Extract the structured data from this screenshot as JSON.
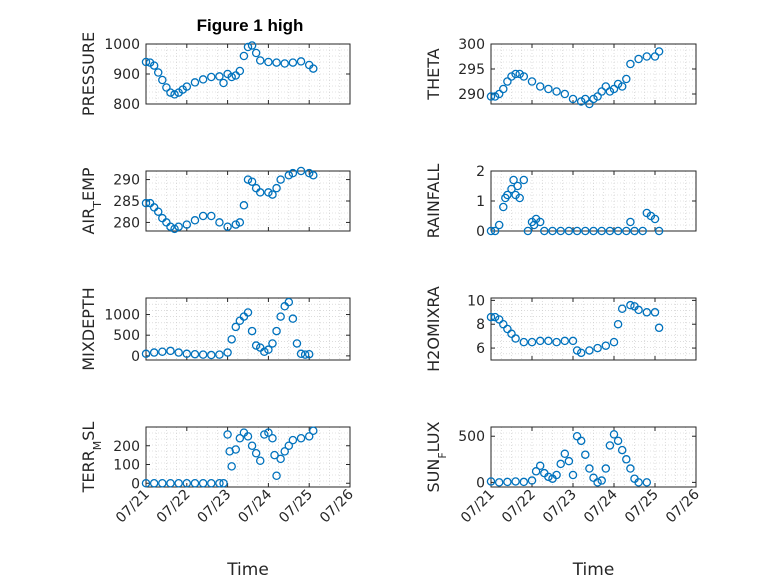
{
  "figure": {
    "title": "Figure 1 high"
  },
  "chart_data": [
    {
      "type": "scatter",
      "title": "Figure 1 high",
      "ylabel": "PRESSURE",
      "ylim": [
        800,
        1000
      ],
      "yticks": [
        800,
        900,
        1000
      ],
      "xlim": [
        0,
        5
      ],
      "xticks": [
        "07/21",
        "07/22",
        "07/23",
        "07/24",
        "07/25",
        "07/26"
      ],
      "xlabel": "",
      "grid": true,
      "points": [
        [
          0,
          940
        ],
        [
          0.1,
          938
        ],
        [
          0.2,
          928
        ],
        [
          0.3,
          905
        ],
        [
          0.4,
          880
        ],
        [
          0.5,
          855
        ],
        [
          0.6,
          838
        ],
        [
          0.7,
          832
        ],
        [
          0.8,
          838
        ],
        [
          0.9,
          848
        ],
        [
          1.0,
          858
        ],
        [
          1.2,
          872
        ],
        [
          1.4,
          882
        ],
        [
          1.6,
          890
        ],
        [
          1.8,
          892
        ],
        [
          1.9,
          870
        ],
        [
          2.0,
          900
        ],
        [
          2.1,
          890
        ],
        [
          2.2,
          895
        ],
        [
          2.3,
          910
        ],
        [
          2.4,
          960
        ],
        [
          2.5,
          990
        ],
        [
          2.6,
          995
        ],
        [
          2.7,
          970
        ],
        [
          2.8,
          945
        ],
        [
          3.0,
          940
        ],
        [
          3.2,
          938
        ],
        [
          3.4,
          935
        ],
        [
          3.6,
          938
        ],
        [
          3.8,
          942
        ],
        [
          4.0,
          930
        ],
        [
          4.1,
          918
        ]
      ]
    },
    {
      "type": "scatter",
      "ylabel": "THETA",
      "ylim": [
        288,
        300
      ],
      "yticks": [
        290,
        295,
        300
      ],
      "xlim": [
        0,
        5
      ],
      "xticks": [
        "07/21",
        "07/22",
        "07/23",
        "07/24",
        "07/25",
        "07/26"
      ],
      "xlabel": "",
      "grid": true,
      "points": [
        [
          0,
          289.5
        ],
        [
          0.1,
          289.5
        ],
        [
          0.2,
          290
        ],
        [
          0.3,
          291
        ],
        [
          0.4,
          292.5
        ],
        [
          0.5,
          293.5
        ],
        [
          0.6,
          294
        ],
        [
          0.7,
          294
        ],
        [
          0.8,
          293.5
        ],
        [
          1.0,
          292.5
        ],
        [
          1.2,
          291.5
        ],
        [
          1.4,
          291
        ],
        [
          1.6,
          290.5
        ],
        [
          1.8,
          290
        ],
        [
          2.0,
          289
        ],
        [
          2.2,
          288.5
        ],
        [
          2.3,
          289
        ],
        [
          2.4,
          288
        ],
        [
          2.5,
          289
        ],
        [
          2.6,
          289.5
        ],
        [
          2.7,
          290.5
        ],
        [
          2.8,
          291.5
        ],
        [
          2.9,
          290.5
        ],
        [
          3.0,
          291
        ],
        [
          3.1,
          292
        ],
        [
          3.2,
          291.5
        ],
        [
          3.3,
          293
        ],
        [
          3.4,
          296
        ],
        [
          3.6,
          297
        ],
        [
          3.8,
          297.5
        ],
        [
          4.0,
          297.5
        ],
        [
          4.1,
          298.5
        ]
      ]
    },
    {
      "type": "scatter",
      "ylabel": "AIR_TEMP",
      "ylim": [
        278,
        292
      ],
      "yticks": [
        280,
        285,
        290
      ],
      "xlim": [
        0,
        5
      ],
      "xticks": [
        "07/21",
        "07/22",
        "07/23",
        "07/24",
        "07/25",
        "07/26"
      ],
      "xlabel": "",
      "grid": true,
      "points": [
        [
          0,
          284.5
        ],
        [
          0.1,
          284.5
        ],
        [
          0.2,
          283.5
        ],
        [
          0.3,
          282.5
        ],
        [
          0.4,
          281
        ],
        [
          0.5,
          280
        ],
        [
          0.6,
          279
        ],
        [
          0.7,
          278.5
        ],
        [
          0.8,
          279
        ],
        [
          1.0,
          279.5
        ],
        [
          1.2,
          280.5
        ],
        [
          1.4,
          281.5
        ],
        [
          1.6,
          281.5
        ],
        [
          1.8,
          280
        ],
        [
          2.0,
          279
        ],
        [
          2.2,
          279.5
        ],
        [
          2.3,
          280
        ],
        [
          2.4,
          284
        ],
        [
          2.5,
          290
        ],
        [
          2.6,
          289.5
        ],
        [
          2.7,
          288
        ],
        [
          2.8,
          287
        ],
        [
          3.0,
          287
        ],
        [
          3.1,
          286.5
        ],
        [
          3.2,
          288
        ],
        [
          3.3,
          290
        ],
        [
          3.5,
          291
        ],
        [
          3.6,
          291.5
        ],
        [
          3.8,
          292
        ],
        [
          4.0,
          291.5
        ],
        [
          4.1,
          291
        ]
      ]
    },
    {
      "type": "scatter",
      "ylabel": "RAINFALL",
      "ylim": [
        0,
        2
      ],
      "yticks": [
        0,
        1,
        2
      ],
      "xlim": [
        0,
        5
      ],
      "xticks": [
        "07/21",
        "07/22",
        "07/23",
        "07/24",
        "07/25",
        "07/26"
      ],
      "xlabel": "",
      "grid": true,
      "points": [
        [
          0,
          0
        ],
        [
          0.1,
          0
        ],
        [
          0.2,
          0.2
        ],
        [
          0.3,
          0.8
        ],
        [
          0.35,
          1.1
        ],
        [
          0.4,
          1.2
        ],
        [
          0.5,
          1.4
        ],
        [
          0.55,
          1.7
        ],
        [
          0.6,
          1.2
        ],
        [
          0.65,
          1.5
        ],
        [
          0.7,
          1.1
        ],
        [
          0.8,
          1.7
        ],
        [
          0.9,
          0
        ],
        [
          1.0,
          0.3
        ],
        [
          1.05,
          0.2
        ],
        [
          1.1,
          0.4
        ],
        [
          1.2,
          0.3
        ],
        [
          1.3,
          0
        ],
        [
          1.5,
          0
        ],
        [
          1.7,
          0
        ],
        [
          1.9,
          0
        ],
        [
          2.1,
          0
        ],
        [
          2.3,
          0
        ],
        [
          2.5,
          0
        ],
        [
          2.7,
          0
        ],
        [
          2.9,
          0
        ],
        [
          3.1,
          0
        ],
        [
          3.3,
          0
        ],
        [
          3.4,
          0.3
        ],
        [
          3.5,
          0
        ],
        [
          3.7,
          0
        ],
        [
          3.8,
          0.6
        ],
        [
          3.9,
          0.5
        ],
        [
          4.0,
          0.4
        ],
        [
          4.1,
          0
        ]
      ]
    },
    {
      "type": "scatter",
      "ylabel": "MIXDEPTH",
      "ylim": [
        -100,
        1400
      ],
      "yticks": [
        0,
        500,
        1000
      ],
      "xlim": [
        0,
        5
      ],
      "xticks": [
        "07/21",
        "07/22",
        "07/23",
        "07/24",
        "07/25",
        "07/26"
      ],
      "xlabel": "",
      "grid": true,
      "points": [
        [
          0,
          50
        ],
        [
          0.2,
          80
        ],
        [
          0.4,
          100
        ],
        [
          0.6,
          120
        ],
        [
          0.8,
          80
        ],
        [
          1.0,
          50
        ],
        [
          1.2,
          40
        ],
        [
          1.4,
          30
        ],
        [
          1.6,
          20
        ],
        [
          1.8,
          30
        ],
        [
          2.0,
          80
        ],
        [
          2.1,
          400
        ],
        [
          2.2,
          700
        ],
        [
          2.3,
          850
        ],
        [
          2.4,
          950
        ],
        [
          2.5,
          1050
        ],
        [
          2.6,
          600
        ],
        [
          2.7,
          250
        ],
        [
          2.8,
          200
        ],
        [
          2.9,
          100
        ],
        [
          3.0,
          150
        ],
        [
          3.1,
          300
        ],
        [
          3.2,
          600
        ],
        [
          3.3,
          950
        ],
        [
          3.4,
          1200
        ],
        [
          3.5,
          1300
        ],
        [
          3.6,
          900
        ],
        [
          3.7,
          300
        ],
        [
          3.8,
          50
        ],
        [
          3.9,
          30
        ],
        [
          4.0,
          40
        ]
      ]
    },
    {
      "type": "scatter",
      "ylabel": "H2OMIXRA",
      "ylim": [
        5,
        10.2
      ],
      "yticks": [
        6,
        8,
        10
      ],
      "xlim": [
        0,
        5
      ],
      "xticks": [
        "07/21",
        "07/22",
        "07/23",
        "07/24",
        "07/25",
        "07/26"
      ],
      "xlabel": "",
      "grid": true,
      "points": [
        [
          0,
          8.6
        ],
        [
          0.1,
          8.6
        ],
        [
          0.2,
          8.4
        ],
        [
          0.3,
          8
        ],
        [
          0.4,
          7.6
        ],
        [
          0.5,
          7.2
        ],
        [
          0.6,
          6.8
        ],
        [
          0.8,
          6.5
        ],
        [
          1.0,
          6.5
        ],
        [
          1.2,
          6.6
        ],
        [
          1.4,
          6.6
        ],
        [
          1.6,
          6.5
        ],
        [
          1.8,
          6.6
        ],
        [
          2.0,
          6.6
        ],
        [
          2.1,
          5.8
        ],
        [
          2.2,
          5.6
        ],
        [
          2.4,
          5.8
        ],
        [
          2.6,
          6
        ],
        [
          2.8,
          6.2
        ],
        [
          3.0,
          6.5
        ],
        [
          3.1,
          8
        ],
        [
          3.2,
          9.3
        ],
        [
          3.4,
          9.6
        ],
        [
          3.5,
          9.5
        ],
        [
          3.6,
          9.2
        ],
        [
          3.8,
          9
        ],
        [
          4.0,
          9
        ],
        [
          4.1,
          7.7
        ]
      ]
    },
    {
      "type": "scatter",
      "ylabel": "TERR_MSL",
      "ylim": [
        -20,
        300
      ],
      "yticks": [
        0,
        100,
        200
      ],
      "xlim": [
        0,
        5
      ],
      "xticks": [
        "07/21",
        "07/22",
        "07/23",
        "07/24",
        "07/25",
        "07/26"
      ],
      "xlabel": "Time",
      "grid": true,
      "points": [
        [
          0,
          0
        ],
        [
          0.2,
          0
        ],
        [
          0.4,
          0
        ],
        [
          0.6,
          0
        ],
        [
          0.8,
          0
        ],
        [
          1.0,
          0
        ],
        [
          1.2,
          0
        ],
        [
          1.4,
          0
        ],
        [
          1.6,
          0
        ],
        [
          1.8,
          0
        ],
        [
          1.9,
          0
        ],
        [
          2.0,
          260
        ],
        [
          2.05,
          170
        ],
        [
          2.1,
          90
        ],
        [
          2.2,
          180
        ],
        [
          2.3,
          240
        ],
        [
          2.4,
          270
        ],
        [
          2.5,
          250
        ],
        [
          2.6,
          200
        ],
        [
          2.7,
          160
        ],
        [
          2.8,
          120
        ],
        [
          2.9,
          260
        ],
        [
          3.0,
          270
        ],
        [
          3.1,
          240
        ],
        [
          3.15,
          150
        ],
        [
          3.2,
          40
        ],
        [
          3.3,
          130
        ],
        [
          3.4,
          170
        ],
        [
          3.5,
          200
        ],
        [
          3.6,
          230
        ],
        [
          3.8,
          240
        ],
        [
          4.0,
          250
        ],
        [
          4.1,
          280
        ]
      ]
    },
    {
      "type": "scatter",
      "ylabel": "SUN_FLUX",
      "ylim": [
        -50,
        600
      ],
      "yticks": [
        0,
        500
      ],
      "xlim": [
        0,
        5
      ],
      "xticks": [
        "07/21",
        "07/22",
        "07/23",
        "07/24",
        "07/25",
        "07/26"
      ],
      "xlabel": "Time",
      "grid": true,
      "points": [
        [
          0,
          10
        ],
        [
          0.2,
          0
        ],
        [
          0.4,
          5
        ],
        [
          0.6,
          10
        ],
        [
          0.8,
          5
        ],
        [
          1.0,
          20
        ],
        [
          1.1,
          120
        ],
        [
          1.2,
          180
        ],
        [
          1.3,
          100
        ],
        [
          1.4,
          60
        ],
        [
          1.5,
          40
        ],
        [
          1.6,
          80
        ],
        [
          1.7,
          200
        ],
        [
          1.8,
          310
        ],
        [
          1.9,
          230
        ],
        [
          2.0,
          80
        ],
        [
          2.1,
          500
        ],
        [
          2.2,
          450
        ],
        [
          2.3,
          300
        ],
        [
          2.4,
          150
        ],
        [
          2.5,
          50
        ],
        [
          2.6,
          0
        ],
        [
          2.7,
          20
        ],
        [
          2.8,
          150
        ],
        [
          2.9,
          400
        ],
        [
          3.0,
          520
        ],
        [
          3.1,
          450
        ],
        [
          3.2,
          350
        ],
        [
          3.3,
          250
        ],
        [
          3.4,
          150
        ],
        [
          3.5,
          40
        ],
        [
          3.6,
          0
        ],
        [
          3.8,
          0
        ]
      ]
    }
  ]
}
